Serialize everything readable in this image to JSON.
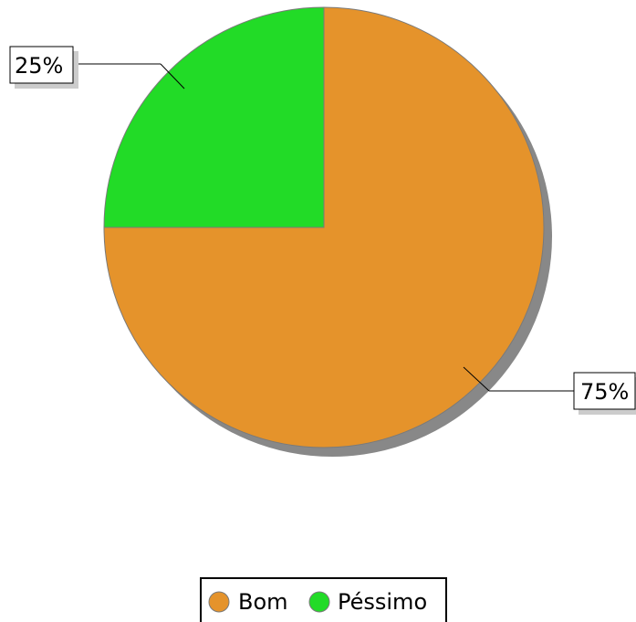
{
  "chart_data": {
    "type": "pie",
    "slices": [
      {
        "name": "Bom",
        "value": 75,
        "label": "75%",
        "color": "#E5932B"
      },
      {
        "name": "Péssimo",
        "value": 25,
        "label": "25%",
        "color": "#22DB27"
      }
    ],
    "start_angle_deg": 90,
    "direction": "clockwise",
    "shadow": true,
    "title": "",
    "legend": {
      "position": "bottom-center",
      "entries": [
        "Bom",
        "Péssimo"
      ]
    },
    "colors": {
      "slice_edge": "#7a7a7a",
      "shadow": "#888888",
      "label_box_shadow": "#cccccc"
    }
  }
}
